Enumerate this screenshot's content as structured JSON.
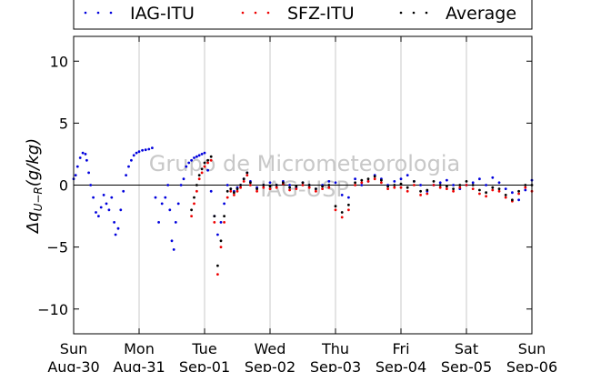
{
  "chart_data": {
    "type": "scatter",
    "ylabel": "Δq_{U−R}(g/kg)",
    "ylim": [
      -12,
      12
    ],
    "yticks": [
      10,
      5,
      0,
      -5,
      -10
    ],
    "xlim": [
      0,
      7
    ],
    "xtick_labels": [
      {
        "day": "Sun",
        "date": "Aug-30"
      },
      {
        "day": "Mon",
        "date": "Aug-31"
      },
      {
        "day": "Tue",
        "date": "Sep-01"
      },
      {
        "day": "Wed",
        "date": "Sep-02"
      },
      {
        "day": "Thu",
        "date": "Sep-03"
      },
      {
        "day": "Fri",
        "date": "Sep-04"
      },
      {
        "day": "Sat",
        "date": "Sep-05"
      },
      {
        "day": "Sun",
        "date": "Sep-06"
      }
    ],
    "grid": "vertical",
    "zero_line": true,
    "legend_position": "top (above plot, outside axes)",
    "watermark": [
      "Grupo de Micrometeorologia",
      "IAG-USP"
    ],
    "series": [
      {
        "name": "IAG-ITU",
        "color": "#0000dd",
        "x": [
          0.0,
          0.03,
          0.06,
          0.1,
          0.14,
          0.18,
          0.2,
          0.23,
          0.26,
          0.3,
          0.34,
          0.38,
          0.42,
          0.46,
          0.5,
          0.54,
          0.58,
          0.62,
          0.64,
          0.68,
          0.72,
          0.76,
          0.8,
          0.84,
          0.88,
          0.92,
          0.96,
          1.0,
          1.05,
          1.1,
          1.15,
          1.2,
          1.25,
          1.3,
          1.35,
          1.4,
          1.44,
          1.47,
          1.5,
          1.53,
          1.56,
          1.6,
          1.64,
          1.68,
          1.72,
          1.76,
          1.8,
          1.84,
          1.88,
          1.92,
          1.96,
          2.0,
          2.05,
          2.1,
          2.15,
          2.2,
          2.25,
          2.3,
          2.35,
          2.4,
          2.45,
          2.5,
          2.55,
          2.6,
          2.65,
          2.7,
          2.8,
          2.9,
          3.0,
          3.1,
          3.2,
          3.3,
          3.4,
          3.5,
          3.6,
          3.7,
          3.8,
          3.9,
          4.0,
          4.1,
          4.2,
          4.3,
          4.4,
          4.5,
          4.6,
          4.7,
          4.8,
          4.9,
          5.0,
          5.1,
          5.2,
          5.3,
          5.4,
          5.5,
          5.6,
          5.7,
          5.8,
          5.9,
          6.0,
          6.1,
          6.2,
          6.3,
          6.4,
          6.5,
          6.6,
          6.7,
          6.8,
          6.9,
          7.0
        ],
        "y": [
          0.5,
          0.8,
          1.5,
          2.2,
          2.6,
          2.5,
          2.0,
          1.0,
          0.0,
          -1.0,
          -2.2,
          -2.5,
          -1.8,
          -0.8,
          -1.5,
          -2.0,
          -1.0,
          -3.0,
          -4.0,
          -3.5,
          -2.0,
          -0.5,
          0.8,
          1.5,
          2.0,
          2.4,
          2.6,
          2.7,
          2.8,
          2.85,
          2.9,
          3.0,
          -1.0,
          -3.0,
          -1.5,
          -1.0,
          0.0,
          -2.0,
          -4.5,
          -5.2,
          -3.0,
          -1.5,
          0.0,
          0.5,
          1.5,
          1.8,
          2.0,
          2.2,
          2.3,
          2.4,
          2.5,
          2.6,
          1.2,
          -0.5,
          -2.5,
          -4.0,
          -3.0,
          -1.5,
          0.0,
          -0.3,
          -0.5,
          -0.2,
          0.0,
          0.5,
          1.0,
          0.3,
          -0.2,
          0.0,
          0.2,
          0.0,
          0.3,
          0.0,
          -0.2,
          0.2,
          0.0,
          -0.3,
          0.0,
          0.3,
          0.2,
          -0.8,
          -1.0,
          0.5,
          0.0,
          0.3,
          0.8,
          0.5,
          0.0,
          0.3,
          0.5,
          0.8,
          0.3,
          0.0,
          -0.5,
          0.0,
          0.2,
          0.4,
          0.0,
          -0.3,
          0.0,
          0.2,
          0.5,
          0.0,
          0.6,
          0.2,
          -0.3,
          -0.6,
          -1.2,
          -0.4,
          0.4
        ]
      },
      {
        "name": "SFZ-ITU",
        "color": "#ee0000",
        "x": [
          1.8,
          1.84,
          1.88,
          1.92,
          1.96,
          2.0,
          2.05,
          2.1,
          2.15,
          2.2,
          2.25,
          2.3,
          2.35,
          2.4,
          2.45,
          2.5,
          2.55,
          2.6,
          2.65,
          2.7,
          2.8,
          2.9,
          3.0,
          3.1,
          3.2,
          3.3,
          3.4,
          3.5,
          3.6,
          3.7,
          3.8,
          3.9,
          4.0,
          4.1,
          4.2,
          4.3,
          4.4,
          4.5,
          4.6,
          4.7,
          4.8,
          4.9,
          5.0,
          5.1,
          5.2,
          5.3,
          5.4,
          5.5,
          5.6,
          5.7,
          5.8,
          5.9,
          6.0,
          6.1,
          6.2,
          6.3,
          6.4,
          6.5,
          6.6,
          6.7,
          6.8,
          6.9,
          7.0
        ],
        "y": [
          -2.5,
          -1.5,
          -0.5,
          0.5,
          1.0,
          1.5,
          1.8,
          2.0,
          -3.0,
          -7.2,
          -5.0,
          -3.0,
          -1.0,
          -0.5,
          -0.8,
          -0.5,
          -0.2,
          0.3,
          0.8,
          0.0,
          -0.5,
          -0.2,
          -0.3,
          -0.2,
          0.1,
          -0.4,
          -0.3,
          0.0,
          -0.2,
          -0.5,
          -0.3,
          -0.2,
          -2.0,
          -2.6,
          -2.0,
          0.0,
          0.2,
          0.3,
          0.5,
          0.2,
          -0.3,
          -0.2,
          -0.2,
          -0.5,
          0.0,
          -0.8,
          -0.7,
          0.0,
          -0.2,
          -0.3,
          -0.5,
          -0.2,
          0.0,
          -0.3,
          -0.7,
          -0.9,
          -0.4,
          -0.5,
          -1.0,
          -1.3,
          -0.7,
          -0.2,
          -0.5
        ]
      },
      {
        "name": "Average",
        "color": "#000000",
        "x": [
          1.8,
          1.84,
          1.88,
          1.92,
          1.96,
          2.0,
          2.05,
          2.1,
          2.15,
          2.2,
          2.25,
          2.3,
          2.35,
          2.4,
          2.45,
          2.5,
          2.55,
          2.6,
          2.65,
          2.7,
          2.8,
          2.9,
          3.0,
          3.1,
          3.2,
          3.3,
          3.4,
          3.5,
          3.6,
          3.7,
          3.8,
          3.9,
          4.0,
          4.1,
          4.2,
          4.3,
          4.4,
          4.5,
          4.6,
          4.7,
          4.8,
          4.9,
          5.0,
          5.1,
          5.2,
          5.3,
          5.4,
          5.5,
          5.6,
          5.7,
          5.8,
          5.9,
          6.0,
          6.1,
          6.2,
          6.3,
          6.4,
          6.5,
          6.6,
          6.7,
          6.8,
          6.9,
          7.0
        ],
        "y": [
          -2.0,
          -1.0,
          0.0,
          0.8,
          1.3,
          1.8,
          2.0,
          2.3,
          -2.5,
          -6.5,
          -4.5,
          -2.5,
          -0.5,
          -0.3,
          -0.6,
          -0.3,
          0.0,
          0.5,
          1.0,
          0.2,
          -0.3,
          0.0,
          -0.1,
          0.0,
          0.2,
          -0.2,
          -0.1,
          0.2,
          0.0,
          -0.3,
          -0.1,
          0.0,
          -1.7,
          -2.2,
          -1.6,
          0.2,
          0.4,
          0.5,
          0.7,
          0.4,
          -0.1,
          0.0,
          0.1,
          -0.2,
          0.3,
          -0.5,
          -0.4,
          0.3,
          0.0,
          -0.1,
          -0.3,
          0.0,
          0.3,
          0.0,
          -0.4,
          -0.6,
          -0.2,
          -0.3,
          -0.8,
          -1.2,
          -0.5,
          0.0,
          0.0
        ]
      }
    ]
  }
}
